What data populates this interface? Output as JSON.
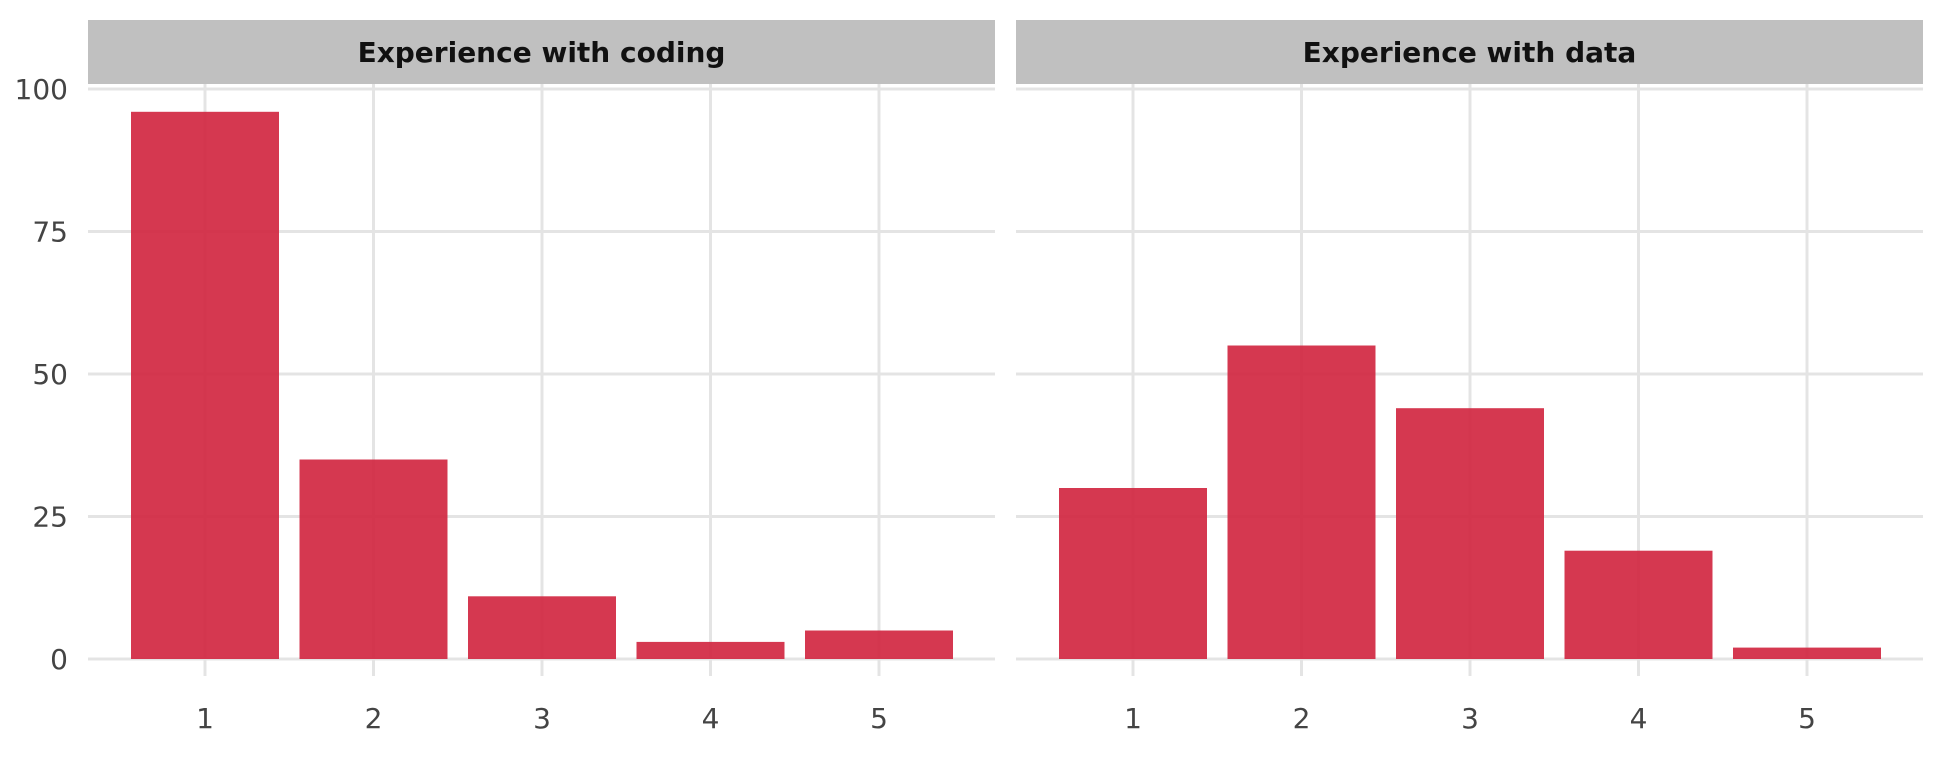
{
  "chart_data": {
    "type": "bar",
    "facets": [
      {
        "title": "Experience with coding",
        "categories": [
          "1",
          "2",
          "3",
          "4",
          "5"
        ],
        "values": [
          96,
          35,
          11,
          3,
          5
        ]
      },
      {
        "title": "Experience with data",
        "categories": [
          "1",
          "2",
          "3",
          "4",
          "5"
        ],
        "values": [
          30,
          55,
          44,
          19,
          2
        ]
      }
    ],
    "y_ticks": [
      0,
      25,
      50,
      75,
      100
    ],
    "ylim": [
      0,
      100
    ],
    "xlabel": "",
    "ylabel": "",
    "grid": true,
    "legend": "none",
    "bar_color": "#d0223d",
    "strip_color": "#c0c0c0",
    "grid_color": "#e4e4e4"
  }
}
